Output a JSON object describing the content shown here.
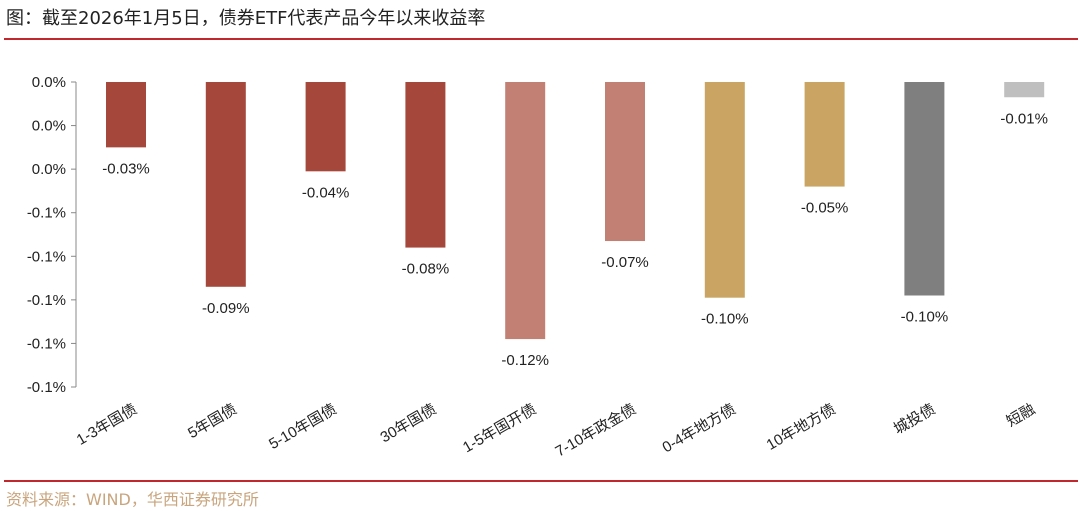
{
  "title": "图：截至2026年1月5日，债券ETF代表产品今年以来收益率",
  "source": "资料来源：WIND，华西证券研究所",
  "chart_data": {
    "type": "bar",
    "categories": [
      "1-3年国债",
      "5年国债",
      "5-10年国债",
      "30年国债",
      "1-5年国开债",
      "7-10年政金债",
      "0-4年地方债",
      "10年地方债",
      "城投债",
      "短融"
    ],
    "values": [
      -0.03,
      -0.094,
      -0.041,
      -0.076,
      -0.118,
      -0.073,
      -0.099,
      -0.048,
      -0.098,
      -0.007
    ],
    "data_labels": [
      "-0.03%",
      "-0.09%",
      "-0.04%",
      "-0.08%",
      "-0.12%",
      "-0.07%",
      "-0.10%",
      "-0.05%",
      "-0.10%",
      "-0.01%"
    ],
    "colors": [
      "#A5483B",
      "#A5483B",
      "#A5483B",
      "#A5483B",
      "#C27F73",
      "#C27F73",
      "#C9A462",
      "#C9A462",
      "#7F7F7F",
      "#BFBFBF"
    ],
    "ylim": [
      -0.14,
      0
    ],
    "ticks": [
      0,
      -0.02,
      -0.04,
      -0.06,
      -0.08,
      -0.1,
      -0.12,
      -0.14
    ],
    "tick_labels": [
      "0.0%",
      "0.0%",
      "0.0%",
      "-0.1%",
      "-0.1%",
      "-0.1%",
      "-0.1%",
      "-0.1%"
    ],
    "grid": false,
    "legend": "none",
    "xlabel": "",
    "ylabel": ""
  }
}
